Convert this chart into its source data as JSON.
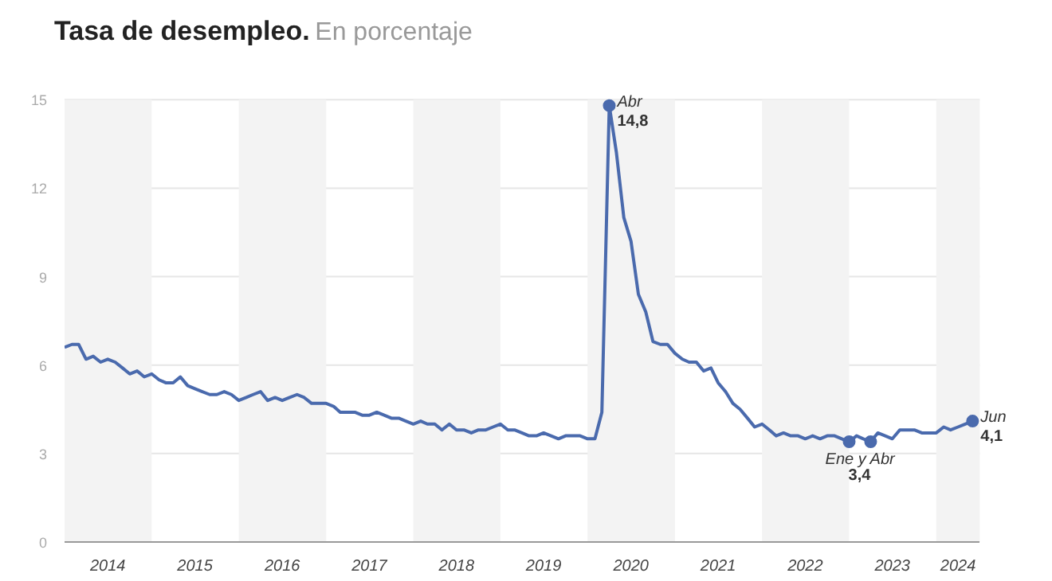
{
  "chart_data": {
    "type": "line",
    "title": "Tasa de desempleo.",
    "subtitle": "En porcentaje",
    "x": [
      "2014-01",
      "2014-02",
      "2014-03",
      "2014-04",
      "2014-05",
      "2014-06",
      "2014-07",
      "2014-08",
      "2014-09",
      "2014-10",
      "2014-11",
      "2014-12",
      "2015-01",
      "2015-02",
      "2015-03",
      "2015-04",
      "2015-05",
      "2015-06",
      "2015-07",
      "2015-08",
      "2015-09",
      "2015-10",
      "2015-11",
      "2015-12",
      "2016-01",
      "2016-02",
      "2016-03",
      "2016-04",
      "2016-05",
      "2016-06",
      "2016-07",
      "2016-08",
      "2016-09",
      "2016-10",
      "2016-11",
      "2016-12",
      "2017-01",
      "2017-02",
      "2017-03",
      "2017-04",
      "2017-05",
      "2017-06",
      "2017-07",
      "2017-08",
      "2017-09",
      "2017-10",
      "2017-11",
      "2017-12",
      "2018-01",
      "2018-02",
      "2018-03",
      "2018-04",
      "2018-05",
      "2018-06",
      "2018-07",
      "2018-08",
      "2018-09",
      "2018-10",
      "2018-11",
      "2018-12",
      "2019-01",
      "2019-02",
      "2019-03",
      "2019-04",
      "2019-05",
      "2019-06",
      "2019-07",
      "2019-08",
      "2019-09",
      "2019-10",
      "2019-11",
      "2019-12",
      "2020-01",
      "2020-02",
      "2020-03",
      "2020-04",
      "2020-05",
      "2020-06",
      "2020-07",
      "2020-08",
      "2020-09",
      "2020-10",
      "2020-11",
      "2020-12",
      "2021-01",
      "2021-02",
      "2021-03",
      "2021-04",
      "2021-05",
      "2021-06",
      "2021-07",
      "2021-08",
      "2021-09",
      "2021-10",
      "2021-11",
      "2021-12",
      "2022-01",
      "2022-02",
      "2022-03",
      "2022-04",
      "2022-05",
      "2022-06",
      "2022-07",
      "2022-08",
      "2022-09",
      "2022-10",
      "2022-11",
      "2022-12",
      "2023-01",
      "2023-02",
      "2023-03",
      "2023-04",
      "2023-05",
      "2023-06",
      "2023-07",
      "2023-08",
      "2023-09",
      "2023-10",
      "2023-11",
      "2023-12",
      "2024-01",
      "2024-02",
      "2024-03",
      "2024-04",
      "2024-05",
      "2024-06"
    ],
    "series": [
      {
        "color": "#4a6aad",
        "values": [
          6.6,
          6.7,
          6.7,
          6.2,
          6.3,
          6.1,
          6.2,
          6.1,
          5.9,
          5.7,
          5.8,
          5.6,
          5.7,
          5.5,
          5.4,
          5.4,
          5.6,
          5.3,
          5.2,
          5.1,
          5.0,
          5.0,
          5.1,
          5.0,
          4.8,
          4.9,
          5.0,
          5.1,
          4.8,
          4.9,
          4.8,
          4.9,
          5.0,
          4.9,
          4.7,
          4.7,
          4.7,
          4.6,
          4.4,
          4.4,
          4.4,
          4.3,
          4.3,
          4.4,
          4.3,
          4.2,
          4.2,
          4.1,
          4.0,
          4.1,
          4.0,
          4.0,
          3.8,
          4.0,
          3.8,
          3.8,
          3.7,
          3.8,
          3.8,
          3.9,
          4.0,
          3.8,
          3.8,
          3.7,
          3.6,
          3.6,
          3.7,
          3.6,
          3.5,
          3.6,
          3.6,
          3.6,
          3.5,
          3.5,
          4.4,
          14.8,
          13.2,
          11.0,
          10.2,
          8.4,
          7.8,
          6.8,
          6.7,
          6.7,
          6.4,
          6.2,
          6.1,
          6.1,
          5.8,
          5.9,
          5.4,
          5.1,
          4.7,
          4.5,
          4.2,
          3.9,
          4.0,
          3.8,
          3.6,
          3.7,
          3.6,
          3.6,
          3.5,
          3.6,
          3.5,
          3.6,
          3.6,
          3.5,
          3.4,
          3.6,
          3.5,
          3.4,
          3.7,
          3.6,
          3.5,
          3.8,
          3.8,
          3.8,
          3.7,
          3.7,
          3.7,
          3.9,
          3.8,
          3.9,
          4.0,
          4.1
        ]
      }
    ],
    "xlim": [
      "2014-01-01",
      "2024-07-01"
    ],
    "xticks": [
      {
        "value": "2014-07-01",
        "label": "2014"
      },
      {
        "value": "2015-07-01",
        "label": "2015"
      },
      {
        "value": "2016-07-01",
        "label": "2016"
      },
      {
        "value": "2017-07-01",
        "label": "2017"
      },
      {
        "value": "2018-07-01",
        "label": "2018"
      },
      {
        "value": "2019-07-01",
        "label": "2019"
      },
      {
        "value": "2020-07-01",
        "label": "2020"
      },
      {
        "value": "2021-07-01",
        "label": "2021"
      },
      {
        "value": "2022-07-01",
        "label": "2022"
      },
      {
        "value": "2023-07-01",
        "label": "2023"
      },
      {
        "value": "2024-04-01",
        "label": "2024"
      }
    ],
    "ylim": [
      0,
      15
    ],
    "yticks": [
      0,
      3,
      6,
      9,
      12,
      15
    ],
    "grid": "y",
    "line_style": "solid",
    "marker": "none",
    "bands": [
      {
        "axis": "x",
        "from": "2014-01-01",
        "to": "2015-01-01",
        "color": "#f3f3f3"
      },
      {
        "axis": "x",
        "from": "2016-01-01",
        "to": "2017-01-01",
        "color": "#f3f3f3"
      },
      {
        "axis": "x",
        "from": "2018-01-01",
        "to": "2019-01-01",
        "color": "#f3f3f3"
      },
      {
        "axis": "x",
        "from": "2020-01-01",
        "to": "2021-01-01",
        "color": "#f3f3f3"
      },
      {
        "axis": "x",
        "from": "2022-01-01",
        "to": "2023-01-01",
        "color": "#f3f3f3"
      },
      {
        "axis": "x",
        "from": "2024-01-01",
        "to": "2024-07-01",
        "color": "#f3f3f3"
      }
    ],
    "annotations": [
      {
        "text": "Abr\n14,8",
        "x": "2020-04",
        "y": 14.8
      },
      {
        "text": "Ene y Abr",
        "x": "2023-01",
        "y": 3.4
      },
      {
        "text": "3,4",
        "x": "2023-04",
        "y": 3.4
      },
      {
        "text": "Jun\n4,1",
        "x": "2024-06",
        "y": 4.1
      }
    ]
  }
}
